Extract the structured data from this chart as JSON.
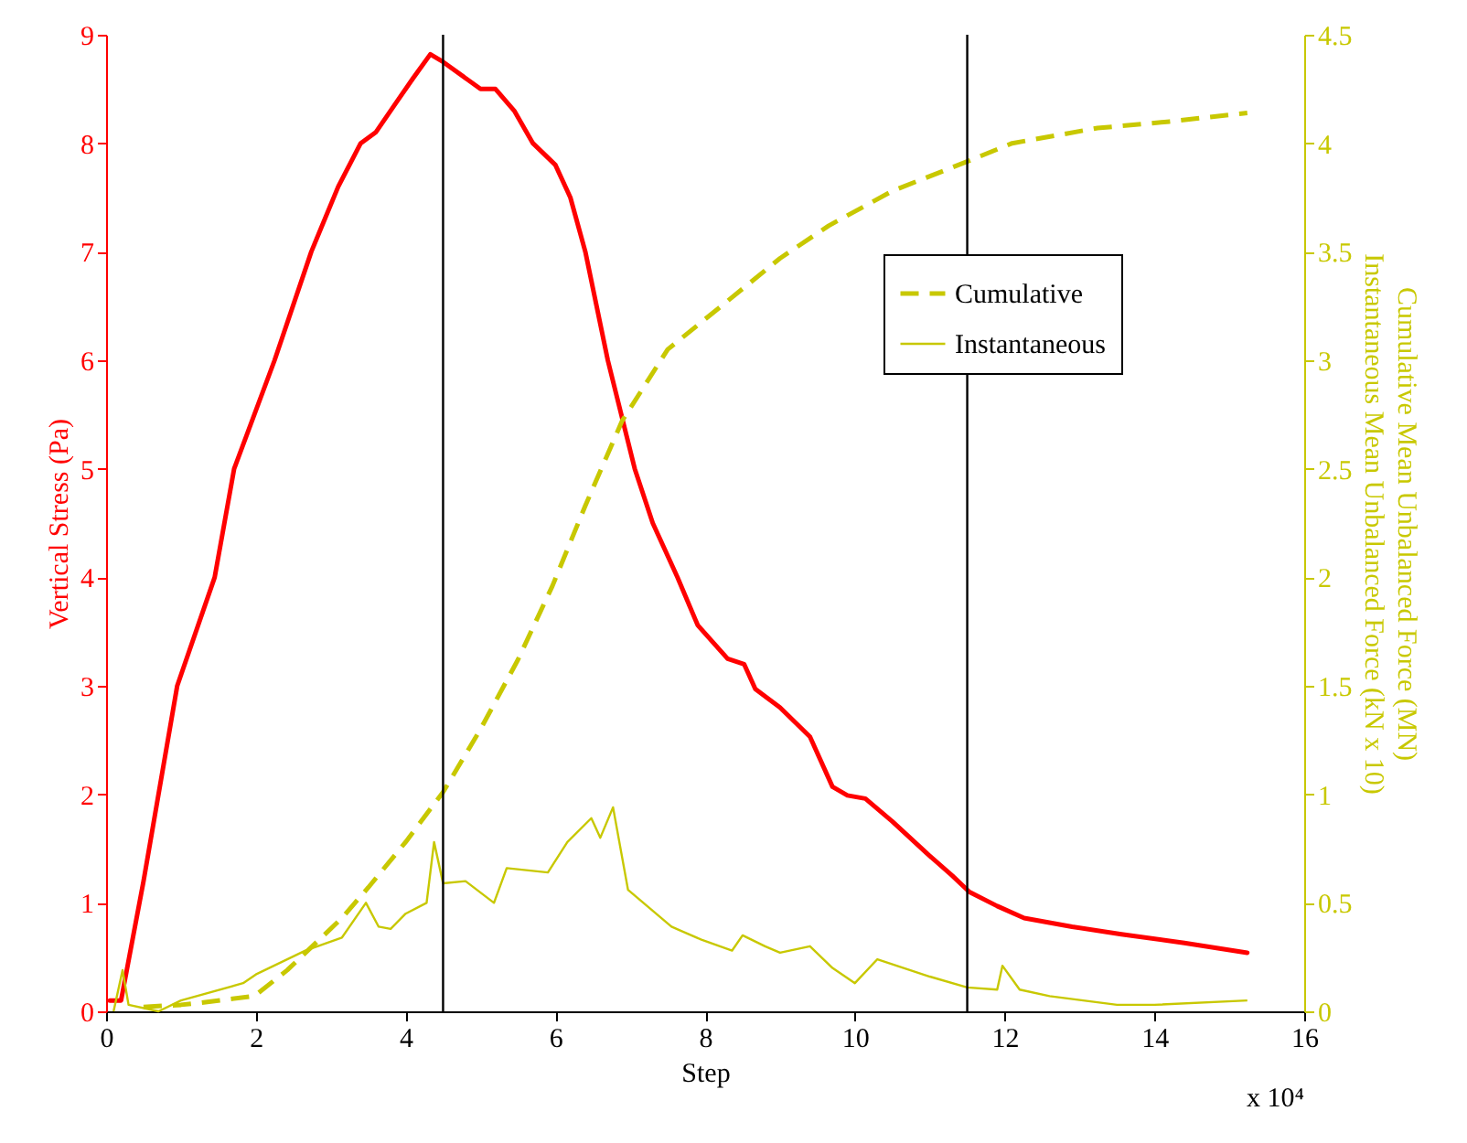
{
  "chart_data": {
    "type": "line",
    "xlabel": "Step",
    "ylabel": "Vertical Stress (Pa)",
    "y2label": "Cumulative Mean Unbalanced Force (MN)\nInstantaneous Mean Unbalanced Force (kN x 10)",
    "annotations": [
      "x 10⁴"
    ],
    "xlim": [
      0,
      16
    ],
    "xticks": [
      0,
      2,
      4,
      6,
      8,
      10,
      12,
      14,
      16
    ],
    "ylim": [
      0,
      9
    ],
    "yticks": [
      0,
      1,
      2,
      3,
      4,
      5,
      6,
      7,
      8,
      9
    ],
    "y2lim": [
      0,
      4.5
    ],
    "y2ticks": [
      0,
      0.5,
      1,
      1.5,
      2,
      2.5,
      3,
      3.5,
      4,
      4.5
    ],
    "grid": false,
    "legend": "top right",
    "ref_lines": [
      {
        "axis": "x",
        "value": 4.5,
        "color": "#000000"
      },
      {
        "axis": "x",
        "value": 11.5,
        "color": "#000000"
      }
    ],
    "series": [
      {
        "color": "#ff0000",
        "line_style": "solid",
        "x": [
          0.05,
          0.2,
          0.5,
          0.95,
          1.45,
          1.71,
          2.25,
          2.74,
          3.1,
          3.4,
          3.6,
          3.9,
          4.1,
          4.33,
          4.5,
          4.8,
          5.0,
          5.2,
          5.45,
          5.7,
          6.0,
          6.2,
          6.4,
          6.7,
          7.06,
          7.3,
          7.63,
          7.9,
          8.3,
          8.52,
          8.67,
          9.0,
          9.4,
          9.7,
          9.9,
          10.14,
          10.5,
          10.97,
          11.3,
          11.53,
          11.9,
          12.26,
          12.9,
          13.56,
          14.4,
          15.24
        ],
        "values": [
          0.1,
          0.1,
          1.2,
          3.0,
          4.0,
          5.0,
          6.0,
          7.0,
          7.6,
          8.0,
          8.1,
          8.4,
          8.6,
          8.82,
          8.75,
          8.6,
          8.5,
          8.5,
          8.3,
          8.0,
          7.8,
          7.5,
          7.0,
          6.0,
          5.0,
          4.5,
          4.0,
          3.56,
          3.25,
          3.2,
          2.97,
          2.8,
          2.53,
          2.07,
          1.99,
          1.96,
          1.75,
          1.45,
          1.25,
          1.1,
          0.97,
          0.86,
          0.78,
          0.71,
          0.63,
          0.54
        ]
      },
      {
        "name": "Cumulative",
        "color": "#c8c800",
        "line_style": "dashed",
        "axis": "y2",
        "x": [
          0.5,
          1.0,
          1.27,
          1.98,
          2.42,
          3.15,
          3.5,
          4.0,
          4.5,
          5.0,
          5.5,
          5.96,
          6.4,
          6.89,
          7.5,
          8.36,
          9.0,
          9.65,
          10.5,
          11.53,
          12.1,
          13.24,
          14.2,
          15.24
        ],
        "values": [
          0.02,
          0.03,
          0.04,
          0.07,
          0.19,
          0.43,
          0.57,
          0.78,
          1.01,
          1.3,
          1.62,
          1.96,
          2.33,
          2.72,
          3.05,
          3.29,
          3.47,
          3.62,
          3.78,
          3.92,
          4.0,
          4.07,
          4.1,
          4.14
        ]
      },
      {
        "name": "Instantaneous",
        "color": "#c8c800",
        "line_style": "solid",
        "axis": "y2",
        "x": [
          0.1,
          0.22,
          0.3,
          0.7,
          1.0,
          1.83,
          2.0,
          2.66,
          3.15,
          3.47,
          3.64,
          3.8,
          4.0,
          4.28,
          4.38,
          4.5,
          4.8,
          5.18,
          5.35,
          5.9,
          6.16,
          6.48,
          6.6,
          6.77,
          6.97,
          7.55,
          7.95,
          8.36,
          8.5,
          8.8,
          9.0,
          9.4,
          9.7,
          10.0,
          10.3,
          11.0,
          11.5,
          11.9,
          11.97,
          12.2,
          12.6,
          13.5,
          14.0,
          15.24
        ],
        "values": [
          0.0,
          0.19,
          0.03,
          0.0,
          0.05,
          0.13,
          0.17,
          0.28,
          0.34,
          0.5,
          0.39,
          0.38,
          0.45,
          0.5,
          0.78,
          0.59,
          0.6,
          0.5,
          0.66,
          0.64,
          0.78,
          0.89,
          0.8,
          0.94,
          0.56,
          0.39,
          0.33,
          0.28,
          0.35,
          0.3,
          0.27,
          0.3,
          0.2,
          0.13,
          0.24,
          0.16,
          0.11,
          0.1,
          0.21,
          0.1,
          0.07,
          0.03,
          0.03,
          0.05
        ]
      }
    ]
  }
}
